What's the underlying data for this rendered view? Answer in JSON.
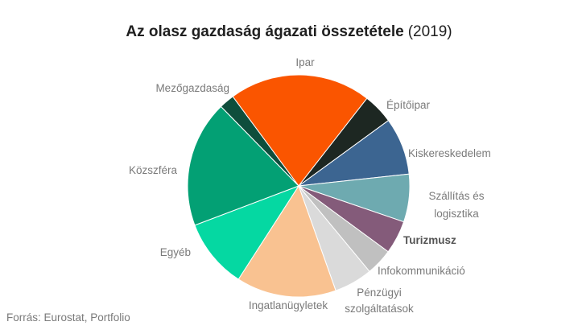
{
  "chart_data": {
    "type": "pie",
    "title": "Az olasz gazdaság ágazati összetétele",
    "subtitle": "(2019)",
    "source": "Forrás: Eurostat, Portfolio",
    "slices": [
      {
        "label": "Ipar",
        "value": 19.6,
        "color": "#fa5500"
      },
      {
        "label": "Építőipar",
        "value": 4.2,
        "color": "#1d2722"
      },
      {
        "label": "Kiskereskedelem",
        "value": 7.9,
        "color": "#3c6591"
      },
      {
        "label": "Szállítás és logisztika",
        "value": 6.6,
        "color": "#6eaab0"
      },
      {
        "label": "Turizmusz",
        "value": 4.6,
        "color": "#845b7a"
      },
      {
        "label": "Infokommunikáció",
        "value": 3.7,
        "color": "#c0c0c0"
      },
      {
        "label": "Pénzügyi szolgáltatások",
        "value": 5.3,
        "color": "#dadada"
      },
      {
        "label": "Ingatlanügyletek",
        "value": 13.8,
        "color": "#f9c291"
      },
      {
        "label": "Egyéb",
        "value": 9.6,
        "color": "#05d8a2"
      },
      {
        "label": "Közszféra",
        "value": 17.5,
        "color": "#03a074"
      },
      {
        "label": "Mezőgazdaság",
        "value": 2.1,
        "color": "#0e4e3c"
      }
    ]
  }
}
